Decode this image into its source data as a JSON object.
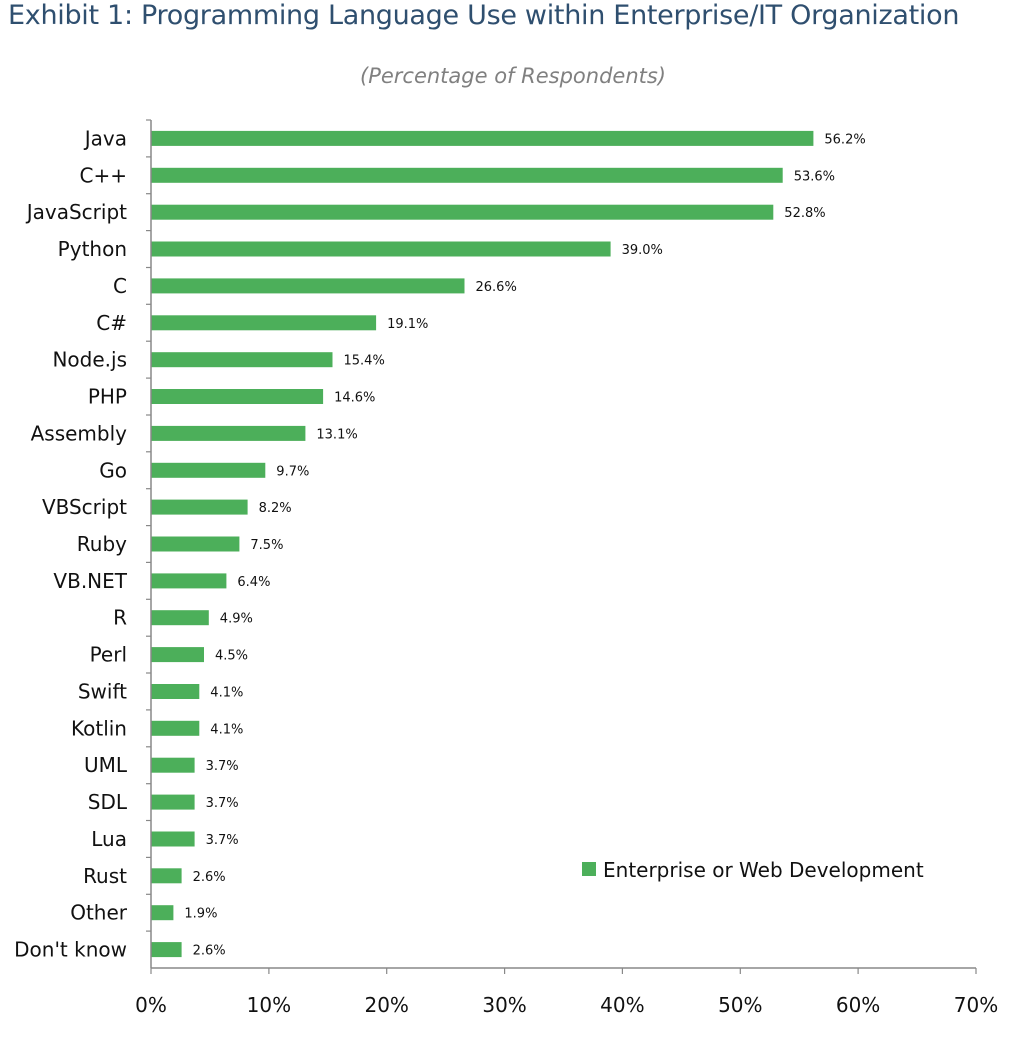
{
  "chart_data": {
    "type": "bar",
    "orientation": "horizontal",
    "title": "Exhibit 1: Programming Language Use within Enterprise/IT Organization",
    "subtitle": "(Percentage of Respondents)",
    "categories": [
      "Java",
      "C++",
      "JavaScript",
      "Python",
      "C",
      "C#",
      "Node.js",
      "PHP",
      "Assembly",
      "Go",
      "VBScript",
      "Ruby",
      "VB.NET",
      "R",
      "Perl",
      "Swift",
      "Kotlin",
      "UML",
      "SDL",
      "Lua",
      "Rust",
      "Other",
      "Don't know"
    ],
    "series": [
      {
        "name": "Enterprise or Web Development",
        "values": [
          56.2,
          53.6,
          52.8,
          39.0,
          26.6,
          19.1,
          15.4,
          14.6,
          13.1,
          9.7,
          8.2,
          7.5,
          6.4,
          4.9,
          4.5,
          4.1,
          4.1,
          3.7,
          3.7,
          3.7,
          2.6,
          1.9,
          2.6
        ],
        "labels": [
          "56.2%",
          "53.6%",
          "52.8%",
          "39.0%",
          "26.6%",
          "19.1%",
          "15.4%",
          "14.6%",
          "13.1%",
          "9.7%",
          "8.2%",
          "7.5%",
          "6.4%",
          "4.9%",
          "4.5%",
          "4.1%",
          "4.1%",
          "3.7%",
          "3.7%",
          "3.7%",
          "2.6%",
          "1.9%",
          "2.6%"
        ],
        "color": "#4caf5a"
      }
    ],
    "xlim": [
      0,
      70
    ],
    "xticks": [
      "0%",
      "10%",
      "20%",
      "30%",
      "40%",
      "50%",
      "60%",
      "70%"
    ],
    "xlabel": "",
    "ylabel": "",
    "legend": "right-bottom",
    "grid": false
  }
}
